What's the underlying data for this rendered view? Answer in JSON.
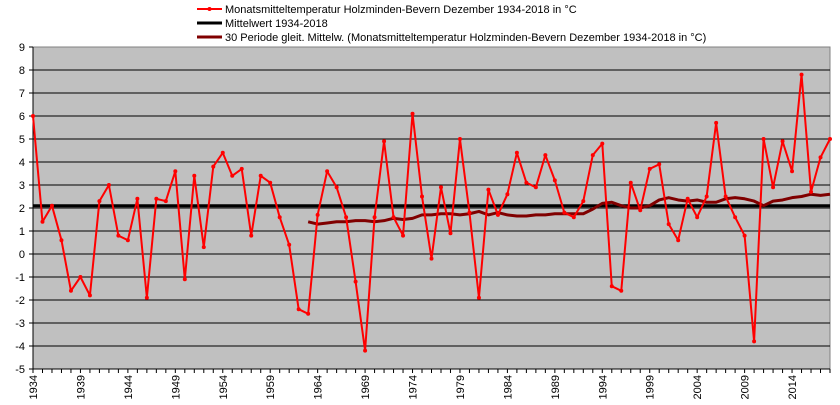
{
  "chart_data": {
    "type": "line",
    "ylim": [
      -5,
      9
    ],
    "yticks": [
      -5,
      -4,
      -3,
      -2,
      -1,
      0,
      1,
      2,
      3,
      4,
      5,
      6,
      7,
      8,
      9
    ],
    "xrange": [
      1934,
      2018
    ],
    "xtick_labels": [
      "1934",
      "1939",
      "1944",
      "1949",
      "1954",
      "1959",
      "1964",
      "1969",
      "1974",
      "1979",
      "1984",
      "1989",
      "1994",
      "1999",
      "2004",
      "2009",
      "2014"
    ],
    "legend": {
      "series_label": "Monatsmitteltemperatur Holzminden-Bevern Dezember 1934-2018 in °C",
      "mean_label": "Mittelwert 1934-2018",
      "moving_label": "30 Periode gleit. Mittelw. (Monatsmitteltemperatur Holzminden-Bevern Dezember 1934-2018 in °C)"
    },
    "colors": {
      "plot_bg": "#c0c0c0",
      "series": "#ff0000",
      "mean": "#000000",
      "moving": "#800000"
    },
    "series": {
      "name": "Monatsmitteltemperatur Holzminden-Bevern Dezember 1934-2018 in °C",
      "start_year": 1934,
      "values": [
        6.0,
        1.4,
        2.1,
        0.6,
        -1.6,
        -1.0,
        -1.8,
        2.3,
        3.0,
        0.8,
        0.6,
        2.4,
        -1.9,
        2.4,
        2.3,
        3.6,
        -1.1,
        3.4,
        0.3,
        3.8,
        4.4,
        3.4,
        3.7,
        0.8,
        3.4,
        3.1,
        1.6,
        0.4,
        -2.4,
        -2.6,
        1.7,
        3.6,
        2.9,
        1.6,
        -1.2,
        -4.2,
        1.6,
        4.9,
        1.6,
        0.8,
        6.1,
        2.5,
        -0.2,
        2.9,
        0.9,
        5.0,
        1.8,
        -1.9,
        2.8,
        1.7,
        2.6,
        4.4,
        3.1,
        2.9,
        4.3,
        3.2,
        1.8,
        1.6,
        2.3,
        4.3,
        4.8,
        -1.4,
        -1.6,
        3.1,
        1.9,
        3.7,
        3.9,
        1.3,
        0.6,
        2.4,
        1.6,
        2.5,
        5.7,
        2.5,
        1.6,
        0.8,
        -3.8,
        5.0,
        2.9,
        4.9,
        3.6,
        7.8,
        2.7,
        4.2,
        5.0
      ]
    },
    "mean_value": 2.1,
    "moving_average": {
      "name": "30 Periode gleit. Mittelw. (Monatsmitteltemperatur Holzminden-Bevern Dezember 1934-2018 in °C)",
      "start_year": 1963,
      "values": [
        1.4,
        1.3,
        1.35,
        1.4,
        1.4,
        1.45,
        1.45,
        1.4,
        1.45,
        1.55,
        1.5,
        1.55,
        1.7,
        1.7,
        1.75,
        1.75,
        1.7,
        1.75,
        1.85,
        1.7,
        1.8,
        1.7,
        1.65,
        1.65,
        1.7,
        1.7,
        1.75,
        1.75,
        1.75,
        1.75,
        1.95,
        2.2,
        2.25,
        2.1,
        2.0,
        2.0,
        2.1,
        2.35,
        2.45,
        2.35,
        2.3,
        2.35,
        2.25,
        2.25,
        2.4,
        2.45,
        2.4,
        2.3,
        2.1,
        2.3,
        2.35,
        2.45,
        2.5,
        2.6,
        2.55,
        2.6
      ]
    }
  }
}
